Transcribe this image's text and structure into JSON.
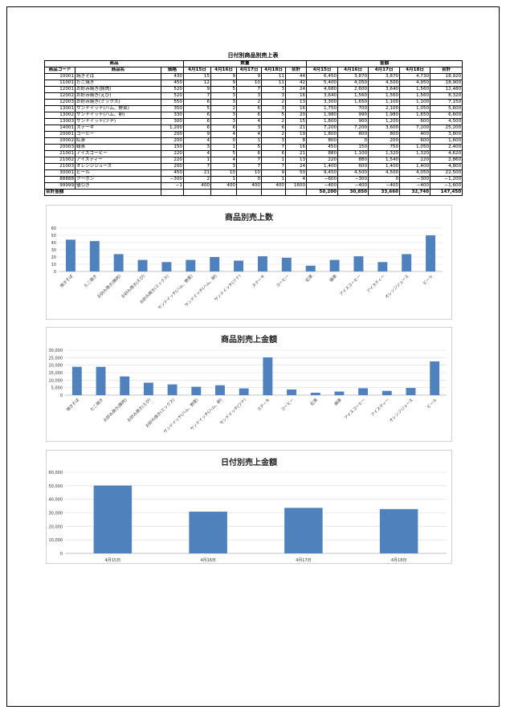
{
  "title": "日付別商品別売上表",
  "headers": {
    "product": "商品",
    "qty": "数量",
    "amount": "金額",
    "code": "商品コード",
    "name": "商品名",
    "price": "価格",
    "days": [
      "4月15日",
      "4月16日",
      "4月17日",
      "4月18日"
    ],
    "sum": "合計"
  },
  "rows": [
    [
      "10001",
      "焼きそば",
      "430",
      "15",
      "9",
      "9",
      "11",
      "44",
      "6,450",
      "3,870",
      "3,870",
      "4,730",
      "18,920"
    ],
    [
      "11001",
      "たこ焼き",
      "450",
      "12",
      "9",
      "10",
      "11",
      "42",
      "5,400",
      "4,050",
      "4,500",
      "4,950",
      "18,900"
    ],
    [
      "12001",
      "お好み焼き(豚肉)",
      "520",
      "9",
      "5",
      "7",
      "3",
      "24",
      "4,680",
      "2,600",
      "3,640",
      "1,560",
      "12,480"
    ],
    [
      "12002",
      "お好み焼き(えび)",
      "520",
      "7",
      "3",
      "3",
      "3",
      "16",
      "3,640",
      "1,560",
      "1,560",
      "1,560",
      "8,320"
    ],
    [
      "12003",
      "お好み焼き(ミックス)",
      "550",
      "6",
      "3",
      "2",
      "2",
      "13",
      "3,300",
      "1,650",
      "1,100",
      "1,100",
      "7,150"
    ],
    [
      "13001",
      "サンドイッチ(ハム、野菜)",
      "350",
      "5",
      "2",
      "6",
      "3",
      "16",
      "1,750",
      "700",
      "2,100",
      "1,050",
      "5,600"
    ],
    [
      "13002",
      "サンドイッチ(ハム、卵)",
      "330",
      "6",
      "3",
      "6",
      "5",
      "20",
      "1,980",
      "990",
      "1,980",
      "1,650",
      "6,600"
    ],
    [
      "13003",
      "サンドイッチ(ツナ)",
      "300",
      "6",
      "3",
      "4",
      "2",
      "15",
      "1,800",
      "900",
      "1,200",
      "600",
      "4,500"
    ],
    [
      "14001",
      "ステーキ",
      "1,200",
      "6",
      "6",
      "3",
      "6",
      "21",
      "7,200",
      "7,200",
      "3,600",
      "7,200",
      "25,200"
    ],
    [
      "20001",
      "コーヒー",
      "200",
      "9",
      "4",
      "4",
      "2",
      "19",
      "1,800",
      "800",
      "800",
      "400",
      "3,800"
    ],
    [
      "20002",
      "紅茶",
      "200",
      "4",
      "0",
      "1",
      "3",
      "8",
      "800",
      "0",
      "200",
      "600",
      "1,600"
    ],
    [
      "20003",
      "緑茶",
      "150",
      "3",
      "1",
      "5",
      "7",
      "16",
      "450",
      "150",
      "750",
      "1,050",
      "2,400"
    ],
    [
      "21001",
      "アイスコーヒー",
      "220",
      "4",
      "5",
      "6",
      "6",
      "21",
      "880",
      "1,100",
      "1,320",
      "1,320",
      "4,620"
    ],
    [
      "21002",
      "アイスティー",
      "220",
      "1",
      "4",
      "7",
      "1",
      "13",
      "220",
      "880",
      "1,540",
      "220",
      "2,860"
    ],
    [
      "21003",
      "オレンジジュース",
      "200",
      "7",
      "3",
      "7",
      "7",
      "24",
      "1,400",
      "600",
      "1,400",
      "1,400",
      "4,800"
    ],
    [
      "30001",
      "ビール",
      "450",
      "21",
      "10",
      "10",
      "9",
      "50",
      "9,450",
      "4,500",
      "4,500",
      "4,050",
      "22,500"
    ],
    [
      "88888",
      "クーポン",
      "−300",
      "2",
      "1",
      "0",
      "1",
      "4",
      "−600",
      "−300",
      "0",
      "−300",
      "−1,200"
    ],
    [
      "99999",
      "値引き",
      "−1",
      "400",
      "400",
      "400",
      "400",
      "1600",
      "−400",
      "−400",
      "−400",
      "−400",
      "−1,600"
    ]
  ],
  "total": {
    "label": "合計金額",
    "values": [
      "50,200",
      "30,850",
      "33,660",
      "32,740",
      "147,450"
    ]
  },
  "bar_color": "#4f81bd",
  "chart_data": [
    {
      "type": "bar",
      "title": "商品別売上数",
      "categories": [
        "焼きそば",
        "たこ焼き",
        "お好み焼き(豚肉)",
        "お好み焼き(えび)",
        "お好み焼き(ミックス)",
        "サンドイッチ(ハム、野菜)",
        "サンドイッチ(ハム、卵)",
        "サンドイッチ(ツナ)",
        "ステーキ",
        "コーヒー",
        "紅茶",
        "緑茶",
        "アイスコーヒー",
        "アイスティー",
        "オレンジジュース",
        "ビール"
      ],
      "values": [
        44,
        42,
        24,
        16,
        13,
        16,
        20,
        15,
        21,
        19,
        8,
        16,
        21,
        13,
        24,
        50
      ],
      "ylim": [
        0,
        60
      ],
      "ystep": 10,
      "grid": true
    },
    {
      "type": "bar",
      "title": "商品別売上金額",
      "categories": [
        "焼きそば",
        "たこ焼き",
        "お好み焼き(豚肉)",
        "お好み焼き(えび)",
        "お好み焼き(ミックス)",
        "サンドイッチ(ハム、野菜)",
        "サンドイッチ(ハム、卵)",
        "サンドイッチ(ツナ)",
        "ステーキ",
        "コーヒー",
        "紅茶",
        "緑茶",
        "アイスコーヒー",
        "アイスティー",
        "オレンジジュース",
        "ビール"
      ],
      "values": [
        18920,
        18900,
        12480,
        8320,
        7150,
        5600,
        6600,
        4500,
        25200,
        3800,
        1600,
        2400,
        4620,
        2860,
        4800,
        22500
      ],
      "ylim": [
        0,
        30000
      ],
      "ystep": 5000,
      "grid": true
    },
    {
      "type": "bar",
      "title": "日付別売上金額",
      "categories": [
        "4月15日",
        "4月16日",
        "4月17日",
        "4月18日"
      ],
      "values": [
        50200,
        30850,
        33660,
        32740
      ],
      "ylim": [
        0,
        60000
      ],
      "ystep": 10000,
      "grid": true
    }
  ]
}
